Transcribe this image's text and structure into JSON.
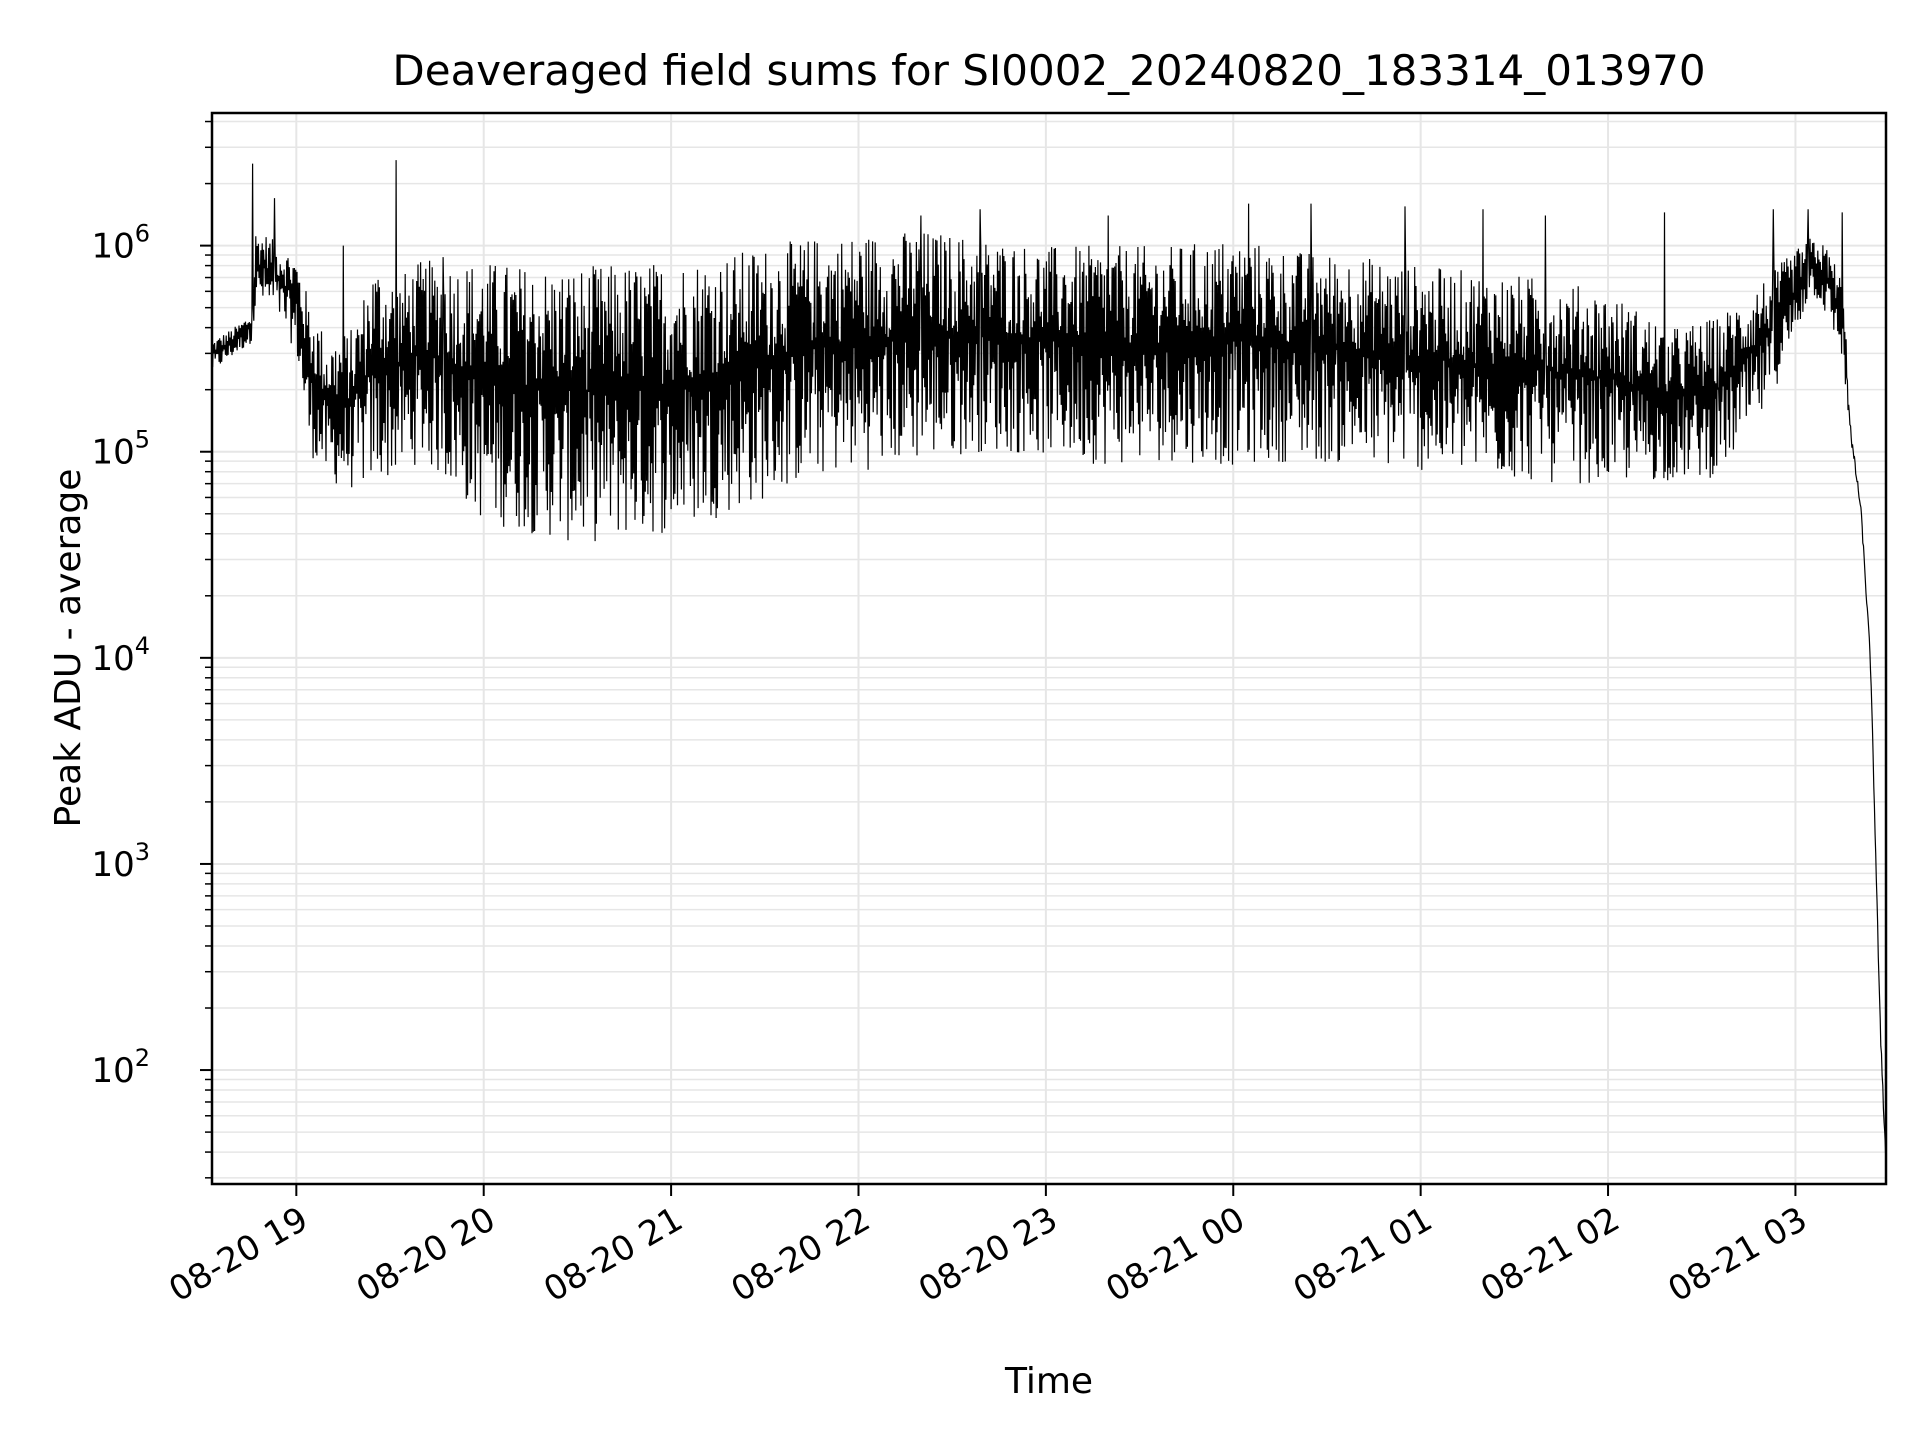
{
  "chart_data": {
    "type": "line",
    "title": "Deaveraged field sums for SI0002_20240820_183314_013970",
    "xlabel": "Time",
    "ylabel": "Peak ADU - average",
    "yscale": "log",
    "ylim": [
      28,
      4400000
    ],
    "xlim": [
      "08-20 18:33",
      "08-21 03:29"
    ],
    "grid": true,
    "line_color": "#000000",
    "grid_color": "#e6e6e6",
    "x_ticks": [
      "08-20 19",
      "08-20 20",
      "08-20 21",
      "08-20 22",
      "08-20 23",
      "08-21 00",
      "08-21 01",
      "08-21 02",
      "08-21 03"
    ],
    "y_ticks": [
      {
        "base": "10",
        "exp": "2",
        "value": 100
      },
      {
        "base": "10",
        "exp": "3",
        "value": 1000
      },
      {
        "base": "10",
        "exp": "4",
        "value": 10000
      },
      {
        "base": "10",
        "exp": "5",
        "value": 100000
      },
      {
        "base": "10",
        "exp": "6",
        "value": 1000000
      }
    ],
    "series": [
      {
        "x": [
          "08-20 18:33",
          "08-20 18:40",
          "08-20 18:46",
          "08-20 18:47",
          "08-20 18:50",
          "08-20 18:55",
          "08-20 19:00",
          "08-20 19:04",
          "08-20 19:10",
          "08-20 19:18",
          "08-20 19:25",
          "08-20 19:32",
          "08-20 19:40",
          "08-20 19:50",
          "08-20 20:00",
          "08-20 20:15",
          "08-20 20:30",
          "08-20 20:45",
          "08-20 21:00",
          "08-20 21:15",
          "08-20 21:30",
          "08-20 21:45",
          "08-20 22:00",
          "08-20 22:20",
          "08-20 22:40",
          "08-20 23:00",
          "08-20 23:20",
          "08-20 23:40",
          "08-21 00:00",
          "08-21 00:20",
          "08-21 00:40",
          "08-21 01:00",
          "08-21 01:20",
          "08-21 01:40",
          "08-21 02:00",
          "08-21 02:20",
          "08-21 02:35",
          "08-21 02:50",
          "08-21 03:00",
          "08-21 03:05",
          "08-21 03:10",
          "08-21 03:15",
          "08-21 03:18",
          "08-21 03:21",
          "08-21 03:24",
          "08-21 03:26",
          "08-21 03:27",
          "08-21 03:28",
          "08-21 03:29"
        ],
        "low": [
          240000,
          290000,
          340000,
          500000,
          500000,
          420000,
          300000,
          100000,
          70000,
          65000,
          70000,
          75000,
          90000,
          65000,
          45000,
          40000,
          35000,
          38000,
          40000,
          48000,
          58000,
          75000,
          80000,
          90000,
          100000,
          95000,
          85000,
          90000,
          85000,
          90000,
          85000,
          80000,
          75000,
          70000,
          70000,
          72000,
          75000,
          150000,
          350000,
          600000,
          450000,
          280000,
          90000,
          45000,
          8000,
          600,
          140,
          60,
          30
        ],
        "high": [
          350000,
          400000,
          480000,
          1200000,
          1150000,
          1000000,
          900000,
          550000,
          350000,
          400000,
          850000,
          700000,
          850000,
          850000,
          850000,
          800000,
          800000,
          820000,
          850000,
          900000,
          1000000,
          1100000,
          1150000,
          1200000,
          1100000,
          1000000,
          1000000,
          1000000,
          1100000,
          950000,
          900000,
          800000,
          750000,
          700000,
          600000,
          400000,
          450000,
          700000,
          950000,
          1100000,
          1000000,
          700000,
          140000,
          60000,
          12000,
          1000,
          250,
          110,
          40
        ],
        "spikes": [
          [
            "08-20 18:46",
            2500000
          ],
          [
            "08-20 18:53",
            1700000
          ],
          [
            "08-20 19:15",
            1000000
          ],
          [
            "08-20 19:32",
            2600000
          ],
          [
            "08-20 19:47",
            880000
          ],
          [
            "08-20 22:20",
            1400000
          ],
          [
            "08-20 22:39",
            1500000
          ],
          [
            "08-20 23:20",
            1400000
          ],
          [
            "08-21 00:05",
            1600000
          ],
          [
            "08-21 00:25",
            1600000
          ],
          [
            "08-21 00:55",
            1550000
          ],
          [
            "08-21 01:20",
            1500000
          ],
          [
            "08-21 01:40",
            1400000
          ],
          [
            "08-21 02:18",
            1450000
          ],
          [
            "08-21 02:53",
            1500000
          ],
          [
            "08-21 03:04",
            1500000
          ],
          [
            "08-21 03:15",
            1450000
          ]
        ]
      }
    ]
  }
}
